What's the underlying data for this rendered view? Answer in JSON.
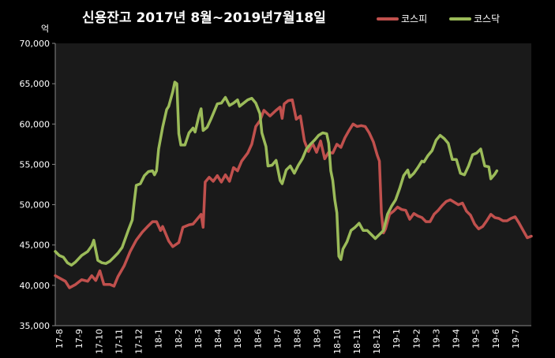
{
  "chart_data": {
    "type": "line",
    "title": "신용잔고 2017년 8월~2019년7월18일",
    "unit_label": "억",
    "ylim": [
      35000,
      70000
    ],
    "yticks": [
      35000,
      40000,
      45000,
      50000,
      55000,
      60000,
      65000,
      70000
    ],
    "ytick_labels": [
      "35,000",
      "40,000",
      "45,000",
      "50,000",
      "55,000",
      "60,000",
      "65,000",
      "70,000"
    ],
    "xticks": [
      "17-8",
      "17-9",
      "17-10",
      "17-11",
      "17-12",
      "18-1",
      "18-2",
      "18-3",
      "18-4",
      "18-5",
      "18-6",
      "18-7",
      "18-8",
      "18-9",
      "18-10",
      "18-11",
      "18-12",
      "19-1",
      "19-2",
      "19-3",
      "19-4",
      "19-5",
      "19-6",
      "19-7"
    ],
    "x_unit": "trading-day index (0–235, ~10 per month)",
    "grid": false,
    "legend_position": "top-right",
    "background": "#000000",
    "series": [
      {
        "name": "코스피",
        "color": "#c0504d",
        "points": [
          [
            0,
            41200
          ],
          [
            5,
            40500
          ],
          [
            7,
            39700
          ],
          [
            10,
            40100
          ],
          [
            13,
            40700
          ],
          [
            16,
            40500
          ],
          [
            18,
            41200
          ],
          [
            20,
            40600
          ],
          [
            22,
            41800
          ],
          [
            24,
            40100
          ],
          [
            27,
            40100
          ],
          [
            29,
            39900
          ],
          [
            31,
            41100
          ],
          [
            34,
            42400
          ],
          [
            37,
            44200
          ],
          [
            40,
            45600
          ],
          [
            43,
            46600
          ],
          [
            46,
            47400
          ],
          [
            48,
            47900
          ],
          [
            50,
            47900
          ],
          [
            52,
            46800
          ],
          [
            53,
            47300
          ],
          [
            56,
            45500
          ],
          [
            58,
            44800
          ],
          [
            61,
            45300
          ],
          [
            63,
            47200
          ],
          [
            66,
            47500
          ],
          [
            68,
            47600
          ],
          [
            70,
            48200
          ],
          [
            72,
            48800
          ],
          [
            73,
            47200
          ],
          [
            74,
            52800
          ],
          [
            76,
            53400
          ],
          [
            78,
            52900
          ],
          [
            80,
            53600
          ],
          [
            82,
            52800
          ],
          [
            84,
            53700
          ],
          [
            86,
            52900
          ],
          [
            88,
            54600
          ],
          [
            90,
            54200
          ],
          [
            92,
            55400
          ],
          [
            95,
            56400
          ],
          [
            97,
            57500
          ],
          [
            99,
            59700
          ],
          [
            101,
            60400
          ],
          [
            103,
            61700
          ],
          [
            106,
            61000
          ],
          [
            109,
            61700
          ],
          [
            111,
            62100
          ],
          [
            112,
            60700
          ],
          [
            113,
            62500
          ],
          [
            115,
            62900
          ],
          [
            117,
            63000
          ],
          [
            119,
            60600
          ],
          [
            121,
            61000
          ],
          [
            123,
            57900
          ],
          [
            125,
            56600
          ],
          [
            127,
            57600
          ],
          [
            129,
            56500
          ],
          [
            131,
            57900
          ],
          [
            133,
            55700
          ],
          [
            135,
            56500
          ],
          [
            137,
            56400
          ],
          [
            139,
            57500
          ],
          [
            141,
            57100
          ],
          [
            143,
            58300
          ],
          [
            145,
            59200
          ],
          [
            147,
            60000
          ],
          [
            149,
            59700
          ],
          [
            151,
            59800
          ],
          [
            153,
            59700
          ],
          [
            155,
            58900
          ],
          [
            157,
            57800
          ],
          [
            159,
            56100
          ],
          [
            160,
            55400
          ],
          [
            161,
            49000
          ],
          [
            162,
            46500
          ],
          [
            163,
            47000
          ],
          [
            165,
            48800
          ],
          [
            167,
            49200
          ],
          [
            169,
            49700
          ],
          [
            171,
            49400
          ],
          [
            173,
            49300
          ],
          [
            175,
            48200
          ],
          [
            177,
            48900
          ],
          [
            179,
            48600
          ],
          [
            181,
            48400
          ],
          [
            183,
            47900
          ],
          [
            185,
            47900
          ],
          [
            187,
            48800
          ],
          [
            189,
            49300
          ],
          [
            191,
            49900
          ],
          [
            193,
            50400
          ],
          [
            195,
            50600
          ],
          [
            197,
            50300
          ],
          [
            199,
            50000
          ],
          [
            201,
            50200
          ],
          [
            203,
            49200
          ],
          [
            205,
            48700
          ],
          [
            207,
            47600
          ],
          [
            209,
            47000
          ],
          [
            211,
            47300
          ],
          [
            213,
            48000
          ],
          [
            215,
            48800
          ],
          [
            217,
            48400
          ],
          [
            219,
            48300
          ],
          [
            221,
            48000
          ],
          [
            223,
            48000
          ],
          [
            225,
            48300
          ],
          [
            227,
            48500
          ],
          [
            229,
            47700
          ],
          [
            231,
            46800
          ],
          [
            233,
            45900
          ],
          [
            235,
            46100
          ]
        ]
      },
      {
        "name": "코스닥",
        "color": "#9bbb59",
        "points": [
          [
            0,
            44200
          ],
          [
            2,
            43700
          ],
          [
            4,
            43500
          ],
          [
            6,
            42800
          ],
          [
            8,
            42500
          ],
          [
            10,
            42900
          ],
          [
            13,
            43700
          ],
          [
            16,
            44200
          ],
          [
            18,
            44900
          ],
          [
            19,
            45600
          ],
          [
            21,
            43100
          ],
          [
            23,
            42800
          ],
          [
            25,
            42700
          ],
          [
            27,
            43000
          ],
          [
            29,
            43500
          ],
          [
            31,
            44000
          ],
          [
            33,
            44700
          ],
          [
            36,
            46800
          ],
          [
            38,
            48100
          ],
          [
            39,
            50400
          ],
          [
            40,
            52400
          ],
          [
            42,
            52600
          ],
          [
            44,
            53600
          ],
          [
            46,
            54100
          ],
          [
            48,
            54200
          ],
          [
            49,
            53700
          ],
          [
            50,
            54200
          ],
          [
            51,
            56900
          ],
          [
            53,
            59600
          ],
          [
            55,
            61800
          ],
          [
            56,
            62200
          ],
          [
            58,
            64000
          ],
          [
            59,
            65200
          ],
          [
            60,
            65000
          ],
          [
            61,
            58800
          ],
          [
            62,
            57400
          ],
          [
            64,
            57400
          ],
          [
            66,
            58900
          ],
          [
            68,
            59500
          ],
          [
            69,
            59000
          ],
          [
            71,
            61100
          ],
          [
            72,
            61900
          ],
          [
            73,
            59200
          ],
          [
            75,
            59600
          ],
          [
            77,
            60700
          ],
          [
            79,
            61900
          ],
          [
            80,
            62500
          ],
          [
            82,
            62600
          ],
          [
            84,
            63300
          ],
          [
            86,
            62300
          ],
          [
            88,
            62600
          ],
          [
            90,
            63000
          ],
          [
            91,
            62200
          ],
          [
            93,
            62600
          ],
          [
            95,
            63000
          ],
          [
            97,
            63200
          ],
          [
            99,
            62600
          ],
          [
            101,
            61300
          ],
          [
            102,
            58900
          ],
          [
            104,
            57200
          ],
          [
            105,
            54800
          ],
          [
            107,
            54900
          ],
          [
            109,
            55500
          ],
          [
            111,
            53000
          ],
          [
            112,
            52600
          ],
          [
            114,
            54300
          ],
          [
            116,
            54800
          ],
          [
            118,
            53900
          ],
          [
            120,
            54900
          ],
          [
            122,
            55700
          ],
          [
            124,
            56900
          ],
          [
            126,
            57500
          ],
          [
            128,
            58000
          ],
          [
            130,
            58600
          ],
          [
            132,
            58900
          ],
          [
            134,
            58800
          ],
          [
            135,
            57600
          ],
          [
            136,
            54200
          ],
          [
            137,
            53000
          ],
          [
            138,
            50600
          ],
          [
            139,
            49000
          ],
          [
            140,
            43600
          ],
          [
            141,
            43200
          ],
          [
            142,
            44500
          ],
          [
            144,
            45400
          ],
          [
            146,
            46800
          ],
          [
            148,
            47200
          ],
          [
            150,
            47700
          ],
          [
            152,
            46800
          ],
          [
            154,
            46800
          ],
          [
            156,
            46300
          ],
          [
            158,
            45800
          ],
          [
            160,
            46300
          ],
          [
            162,
            46800
          ],
          [
            164,
            48800
          ],
          [
            166,
            49800
          ],
          [
            168,
            50600
          ],
          [
            170,
            52000
          ],
          [
            172,
            53600
          ],
          [
            174,
            54300
          ],
          [
            175,
            53400
          ],
          [
            177,
            53900
          ],
          [
            179,
            54600
          ],
          [
            181,
            55400
          ],
          [
            182,
            55300
          ],
          [
            184,
            56100
          ],
          [
            186,
            56700
          ],
          [
            188,
            58000
          ],
          [
            190,
            58600
          ],
          [
            192,
            58200
          ],
          [
            194,
            57600
          ],
          [
            196,
            55600
          ],
          [
            198,
            55600
          ],
          [
            200,
            53900
          ],
          [
            202,
            53700
          ],
          [
            204,
            54800
          ],
          [
            206,
            56200
          ],
          [
            208,
            56400
          ],
          [
            210,
            56900
          ],
          [
            212,
            54800
          ],
          [
            214,
            54700
          ],
          [
            215,
            53200
          ],
          [
            217,
            53800
          ],
          [
            218,
            54200
          ]
        ]
      }
    ]
  }
}
